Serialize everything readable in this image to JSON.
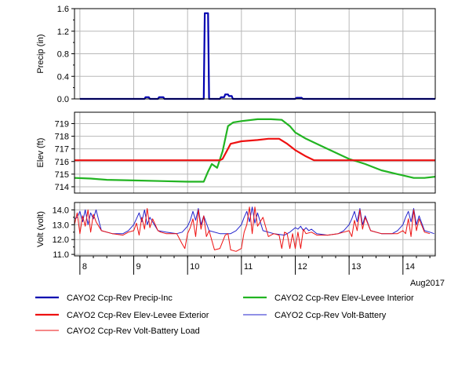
{
  "chart_data": [
    {
      "type": "line",
      "ylabel": "Precip (in)",
      "ylim": [
        0,
        1.6
      ],
      "yticks": [
        "0.0",
        "0.4",
        "0.8",
        "1.2",
        "1.6"
      ],
      "yticks_minor": [
        0.2,
        0.6,
        1.0,
        1.4
      ],
      "grid": true,
      "series": [
        {
          "name": "CAYO2 Ccp-Rev Precip-Inc",
          "color": "#0000b0",
          "x": [
            8.0,
            9.2,
            9.22,
            9.28,
            9.3,
            9.45,
            9.47,
            9.55,
            9.57,
            10.3,
            10.32,
            10.38,
            10.4,
            10.6,
            10.62,
            10.68,
            10.7,
            10.75,
            10.77,
            10.82,
            10.84,
            12.0,
            12.02,
            12.12,
            12.14,
            14.6
          ],
          "values": [
            0,
            0,
            0.03,
            0.03,
            0,
            0,
            0.03,
            0.03,
            0,
            0,
            1.52,
            1.52,
            0,
            0,
            0.03,
            0.03,
            0.08,
            0.08,
            0.05,
            0.05,
            0,
            0,
            0.02,
            0.02,
            0,
            0
          ]
        }
      ]
    },
    {
      "type": "line",
      "ylabel": "Elev (ft)",
      "ylim": [
        713.5,
        719.9
      ],
      "yticks": [
        "714",
        "715",
        "716",
        "717",
        "718",
        "719"
      ],
      "grid": true,
      "series": [
        {
          "name": "CAYO2 Ccp-Rev Elev-Levee Interior",
          "color": "#22b422",
          "x": [
            7.9,
            8.2,
            8.5,
            9.0,
            9.5,
            10.0,
            10.2,
            10.3,
            10.38,
            10.45,
            10.55,
            10.65,
            10.75,
            10.85,
            11.0,
            11.3,
            11.55,
            11.75,
            11.9,
            12.0,
            12.2,
            12.5,
            12.8,
            13.0,
            13.3,
            13.6,
            13.9,
            14.2,
            14.4,
            14.6
          ],
          "values": [
            714.7,
            714.65,
            714.55,
            714.5,
            714.45,
            714.4,
            714.4,
            714.4,
            715.2,
            715.8,
            715.5,
            716.8,
            718.8,
            719.1,
            719.2,
            719.35,
            719.35,
            719.3,
            718.8,
            718.3,
            717.8,
            717.2,
            716.6,
            716.2,
            715.8,
            715.3,
            715.0,
            714.7,
            714.7,
            714.8
          ]
        },
        {
          "name": "CAYO2 Ccp-Rev Elev-Levee Exterior",
          "color": "#ee1111",
          "x": [
            7.9,
            10.6,
            10.65,
            10.8,
            11.0,
            11.3,
            11.5,
            11.7,
            11.85,
            12.0,
            12.2,
            12.35,
            12.6,
            13.0,
            14.6
          ],
          "values": [
            716.1,
            716.1,
            716.2,
            717.4,
            717.6,
            717.7,
            717.8,
            717.8,
            717.4,
            716.9,
            716.4,
            716.1,
            716.1,
            716.1,
            716.1
          ]
        }
      ]
    },
    {
      "type": "line",
      "ylabel": "Volt (volt)",
      "ylim": [
        10.9,
        14.5
      ],
      "yticks": [
        "11.0",
        "12.0",
        "13.0",
        "14.0"
      ],
      "yticks_minor": [
        11.5,
        12.5,
        13.5
      ],
      "xlim": [
        7.9,
        14.6
      ],
      "xticks": [
        "8",
        "9",
        "10",
        "11",
        "12",
        "13",
        "14"
      ],
      "xlabel_extra": "Aug2017",
      "grid": true,
      "series": [
        {
          "name": "CAYO2 Ccp-Rev Volt-Battery",
          "color": "#2222cc",
          "x": [
            7.9,
            7.95,
            8.0,
            8.05,
            8.1,
            8.15,
            8.2,
            8.25,
            8.3,
            8.4,
            8.6,
            8.8,
            8.9,
            9.0,
            9.05,
            9.1,
            9.15,
            9.2,
            9.25,
            9.3,
            9.35,
            9.45,
            9.6,
            9.8,
            9.9,
            10.0,
            10.05,
            10.1,
            10.15,
            10.2,
            10.25,
            10.3,
            10.4,
            10.6,
            10.8,
            10.9,
            11.0,
            11.05,
            11.1,
            11.15,
            11.2,
            11.25,
            11.3,
            11.4,
            11.6,
            11.8,
            11.9,
            12.0,
            12.05,
            12.1,
            12.15,
            12.2,
            12.25,
            12.3,
            12.4,
            12.6,
            12.8,
            12.9,
            13.0,
            13.05,
            13.1,
            13.15,
            13.2,
            13.25,
            13.3,
            13.4,
            13.6,
            13.8,
            13.9,
            14.0,
            14.05,
            14.1,
            14.15,
            14.2,
            14.25,
            14.3,
            14.4,
            14.5,
            14.58
          ],
          "values": [
            13.4,
            13.5,
            13.9,
            13.2,
            14.0,
            13.0,
            13.8,
            13.4,
            14.0,
            12.6,
            12.4,
            12.4,
            12.6,
            13.0,
            13.4,
            13.8,
            13.2,
            14.0,
            13.0,
            13.5,
            13.2,
            12.6,
            12.5,
            12.4,
            12.5,
            12.9,
            13.3,
            13.9,
            13.3,
            14.1,
            13.0,
            13.6,
            12.6,
            12.4,
            12.4,
            12.6,
            13.0,
            13.5,
            13.9,
            13.2,
            14.2,
            13.1,
            13.8,
            12.6,
            12.4,
            12.3,
            12.5,
            12.8,
            12.7,
            12.9,
            12.6,
            12.8,
            12.6,
            12.7,
            12.4,
            12.3,
            12.4,
            12.6,
            13.0,
            13.4,
            13.9,
            13.2,
            14.1,
            13.0,
            13.6,
            12.6,
            12.4,
            12.4,
            12.6,
            13.0,
            13.5,
            13.9,
            13.2,
            14.1,
            13.0,
            13.6,
            12.6,
            12.5,
            12.4
          ]
        },
        {
          "name": "CAYO2 Ccp-Rev Volt-Battery Load",
          "color": "#ee1111",
          "x": [
            7.9,
            7.95,
            8.0,
            8.05,
            8.1,
            8.15,
            8.2,
            8.25,
            8.3,
            8.4,
            8.6,
            8.8,
            8.9,
            9.0,
            9.05,
            9.1,
            9.15,
            9.2,
            9.25,
            9.3,
            9.35,
            9.45,
            9.5,
            9.6,
            9.8,
            9.9,
            9.95,
            10.0,
            10.05,
            10.1,
            10.15,
            10.2,
            10.25,
            10.3,
            10.35,
            10.4,
            10.5,
            10.6,
            10.7,
            10.75,
            10.8,
            10.9,
            11.0,
            11.05,
            11.1,
            11.15,
            11.2,
            11.25,
            11.3,
            11.4,
            11.5,
            11.6,
            11.7,
            11.75,
            11.8,
            11.85,
            11.9,
            11.95,
            12.0,
            12.05,
            12.1,
            12.15,
            12.2,
            12.3,
            12.4,
            12.6,
            12.8,
            12.9,
            13.0,
            13.05,
            13.1,
            13.15,
            13.2,
            13.25,
            13.3,
            13.4,
            13.6,
            13.8,
            13.9,
            14.0,
            14.05,
            14.1,
            14.15,
            14.2,
            14.25,
            14.3,
            14.4,
            14.5
          ],
          "values": [
            13.0,
            13.8,
            12.4,
            13.6,
            12.9,
            14.0,
            12.5,
            13.7,
            13.2,
            12.6,
            12.4,
            12.3,
            12.5,
            12.6,
            13.1,
            12.3,
            13.5,
            12.7,
            14.1,
            12.8,
            13.4,
            12.6,
            12.5,
            12.4,
            12.4,
            11.7,
            11.4,
            12.4,
            12.8,
            13.4,
            12.2,
            14.0,
            12.7,
            13.6,
            12.2,
            12.6,
            11.3,
            11.4,
            12.3,
            12.4,
            11.3,
            11.2,
            11.4,
            12.5,
            13.0,
            14.2,
            12.4,
            14.2,
            12.9,
            13.5,
            12.2,
            12.4,
            12.3,
            11.4,
            12.5,
            12.4,
            11.4,
            12.4,
            11.4,
            12.5,
            11.4,
            12.7,
            12.4,
            12.5,
            12.3,
            12.3,
            12.4,
            12.5,
            12.6,
            12.2,
            13.3,
            12.6,
            14.0,
            12.7,
            13.5,
            12.6,
            12.4,
            12.4,
            12.4,
            12.6,
            12.4,
            13.4,
            12.2,
            14.0,
            12.6,
            13.4,
            12.5,
            12.4
          ]
        }
      ]
    }
  ],
  "legend": [
    {
      "label": "CAYO2 Ccp-Rev Precip-Inc",
      "color": "#0000b0",
      "thick": true
    },
    {
      "label": "CAYO2 Ccp-Rev Elev-Levee Interior",
      "color": "#22b422",
      "thick": true
    },
    {
      "label": "CAYO2 Ccp-Rev Elev-Levee Exterior",
      "color": "#ee1111",
      "thick": true
    },
    {
      "label": "CAYO2 Ccp-Rev Volt-Battery",
      "color": "#2222cc",
      "thick": false
    },
    {
      "label": "CAYO2 Ccp-Rev Volt-Battery Load",
      "color": "#ee1111",
      "thick": false
    }
  ]
}
